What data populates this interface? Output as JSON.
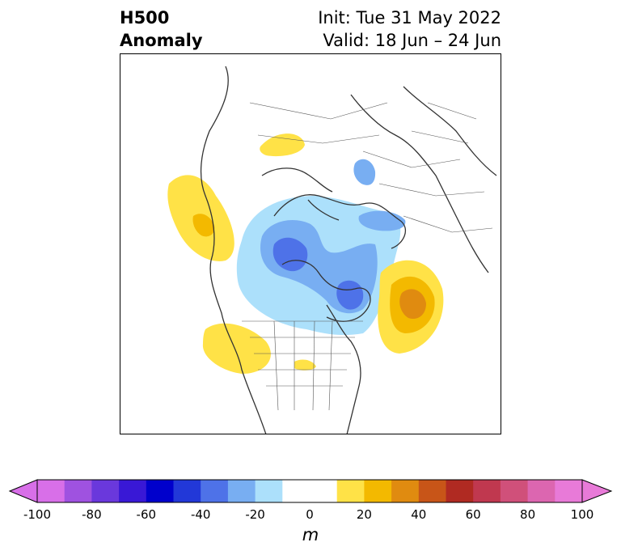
{
  "title": {
    "left_line1": "H500",
    "left_line2": "Anomaly",
    "right_line1": "Init: Tue 31 May 2022",
    "right_line2": "Valid: 18 Jun – 24 Jun"
  },
  "colorbar": {
    "colors": [
      "#d86fe8",
      "#9f52e0",
      "#6a38dc",
      "#3918d6",
      "#0000cc",
      "#2238d8",
      "#4e72e8",
      "#78aef2",
      "#ace0fb",
      "#ffffff",
      "#ffffff",
      "#ffe247",
      "#f3b900",
      "#e08b10",
      "#c85518",
      "#b02a22",
      "#c0384f",
      "#d0507a",
      "#dc66b0",
      "#e87ad8"
    ],
    "tick_labels": [
      "-100",
      "-80",
      "-60",
      "-40",
      "-20",
      "0",
      "20",
      "40",
      "60",
      "80",
      "100"
    ],
    "unit": "m"
  }
}
